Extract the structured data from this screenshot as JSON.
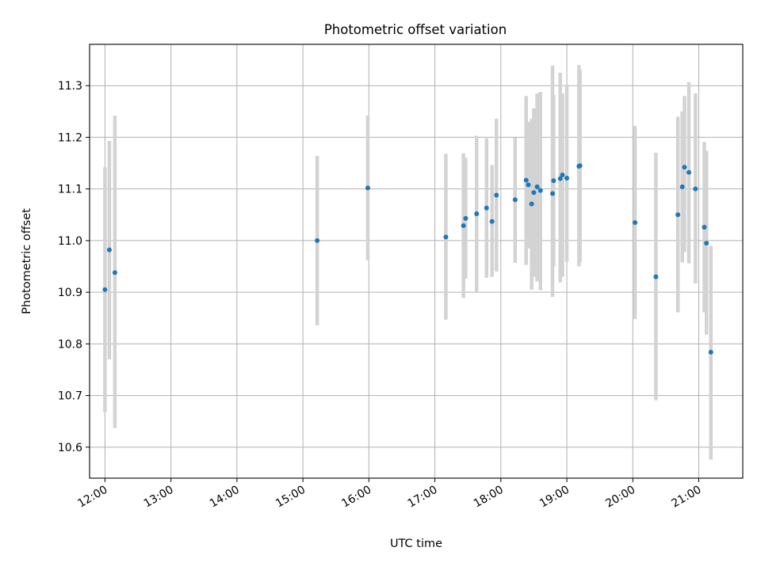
{
  "chart_data": {
    "type": "scatter",
    "title": "Photometric offset variation",
    "xlabel": "UTC time",
    "ylabel": "Photometric offset",
    "xlim": [
      "11:46",
      "21:40"
    ],
    "ylim": [
      10.54,
      11.38
    ],
    "x_ticks": [
      "12:00",
      "13:00",
      "14:00",
      "15:00",
      "16:00",
      "17:00",
      "18:00",
      "19:00",
      "20:00",
      "21:00"
    ],
    "y_ticks": [
      10.6,
      10.7,
      10.8,
      10.9,
      11.0,
      11.1,
      11.2,
      11.3
    ],
    "grid": true,
    "point_color": "#1f77b4",
    "errorbar_color": "#d3d3d3",
    "points": [
      {
        "t": "12:00",
        "y": 10.905,
        "lo": 10.668,
        "hi": 11.142
      },
      {
        "t": "12:04",
        "y": 10.982,
        "lo": 10.77,
        "hi": 11.193
      },
      {
        "t": "12:09",
        "y": 10.938,
        "lo": 10.637,
        "hi": 11.242
      },
      {
        "t": "15:13",
        "y": 11.0,
        "lo": 10.836,
        "hi": 11.164
      },
      {
        "t": "15:59",
        "y": 11.102,
        "lo": 10.962,
        "hi": 11.242
      },
      {
        "t": "17:10",
        "y": 11.007,
        "lo": 10.847,
        "hi": 11.168
      },
      {
        "t": "17:26",
        "y": 11.029,
        "lo": 10.889,
        "hi": 11.169
      },
      {
        "t": "17:28",
        "y": 11.043,
        "lo": 10.926,
        "hi": 11.16
      },
      {
        "t": "17:38",
        "y": 11.052,
        "lo": 10.9,
        "hi": 11.203
      },
      {
        "t": "17:47",
        "y": 11.063,
        "lo": 10.928,
        "hi": 11.198
      },
      {
        "t": "17:52",
        "y": 11.037,
        "lo": 10.93,
        "hi": 11.146
      },
      {
        "t": "17:56",
        "y": 11.088,
        "lo": 10.94,
        "hi": 11.236
      },
      {
        "t": "18:13",
        "y": 11.079,
        "lo": 10.957,
        "hi": 11.199
      },
      {
        "t": "18:23",
        "y": 11.117,
        "lo": 10.953,
        "hi": 11.28
      },
      {
        "t": "18:25",
        "y": 11.108,
        "lo": 10.985,
        "hi": 11.23
      },
      {
        "t": "18:28",
        "y": 11.071,
        "lo": 10.905,
        "hi": 11.236
      },
      {
        "t": "18:30",
        "y": 11.093,
        "lo": 10.93,
        "hi": 11.256
      },
      {
        "t": "18:33",
        "y": 11.104,
        "lo": 10.921,
        "hi": 11.285
      },
      {
        "t": "18:36",
        "y": 11.097,
        "lo": 10.904,
        "hi": 11.288
      },
      {
        "t": "18:47",
        "y": 11.091,
        "lo": 10.891,
        "hi": 11.339
      },
      {
        "t": "18:48",
        "y": 11.116,
        "lo": 10.95,
        "hi": 11.282
      },
      {
        "t": "18:54",
        "y": 11.12,
        "lo": 10.919,
        "hi": 11.325
      },
      {
        "t": "18:56",
        "y": 11.127,
        "lo": 10.93,
        "hi": 11.285
      },
      {
        "t": "19:00",
        "y": 11.121,
        "lo": 10.959,
        "hi": 11.302
      },
      {
        "t": "19:11",
        "y": 11.144,
        "lo": 10.95,
        "hi": 11.34
      },
      {
        "t": "19:12",
        "y": 11.145,
        "lo": 10.958,
        "hi": 11.331
      },
      {
        "t": "20:02",
        "y": 11.035,
        "lo": 10.848,
        "hi": 11.222
      },
      {
        "t": "20:21",
        "y": 10.93,
        "lo": 10.691,
        "hi": 11.17
      },
      {
        "t": "20:41",
        "y": 11.05,
        "lo": 10.861,
        "hi": 11.24
      },
      {
        "t": "20:45",
        "y": 11.104,
        "lo": 10.958,
        "hi": 11.25
      },
      {
        "t": "20:47",
        "y": 11.142,
        "lo": 10.978,
        "hi": 11.28
      },
      {
        "t": "20:51",
        "y": 11.132,
        "lo": 10.956,
        "hi": 11.307
      },
      {
        "t": "20:57",
        "y": 11.1,
        "lo": 10.917,
        "hi": 11.285
      },
      {
        "t": "21:05",
        "y": 11.026,
        "lo": 10.861,
        "hi": 11.191
      },
      {
        "t": "21:07",
        "y": 10.995,
        "lo": 10.818,
        "hi": 11.174
      },
      {
        "t": "21:11",
        "y": 10.784,
        "lo": 10.576,
        "hi": 10.99
      }
    ]
  }
}
